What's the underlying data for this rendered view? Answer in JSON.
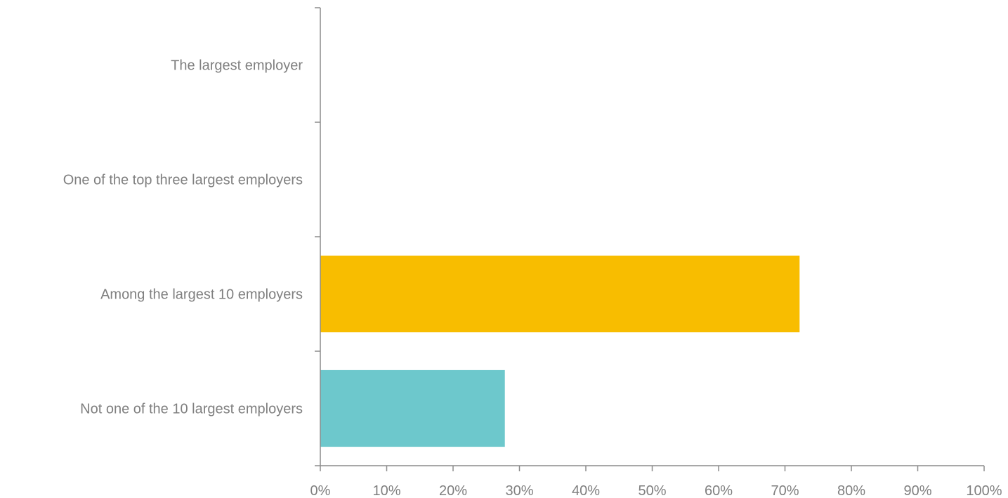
{
  "chart_data": {
    "type": "bar",
    "orientation": "horizontal",
    "categories": [
      "The largest employer",
      "One of the top three largest employers",
      "Among the largest 10 employers",
      "Not one of the 10 largest employers"
    ],
    "values": [
      0,
      0,
      72.2,
      27.8
    ],
    "colors": [
      "#f8bd00",
      "#f8bd00",
      "#f8bd00",
      "#6dc8cc"
    ],
    "title": "",
    "xlabel": "",
    "ylabel": "",
    "xlim": [
      0,
      100
    ],
    "x_ticks": [
      0,
      10,
      20,
      30,
      40,
      50,
      60,
      70,
      80,
      90,
      100
    ],
    "tick_suffix": "%",
    "grid": false,
    "legend": "none"
  }
}
